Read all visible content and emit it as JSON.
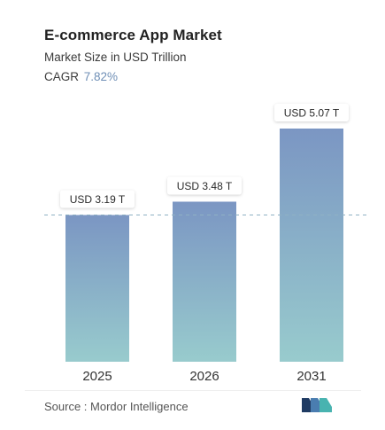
{
  "header": {
    "title": "E-commerce App Market",
    "subtitle": "Market Size in USD Trillion",
    "cagr_label": "CAGR",
    "cagr_value": "7.82%"
  },
  "footer": {
    "source": "Source :  Mordor Intelligence",
    "logo_icon": "mordor-intelligence-logo-icon"
  },
  "colors": {
    "bar_top": "#7b96c3",
    "bar_bottom": "#98cbcd",
    "accent": "#6f8fb6",
    "reference_line": "#8fb0c4"
  },
  "chart_data": {
    "type": "bar",
    "title": "E-commerce App Market",
    "subtitle": "Market Size in USD Trillion",
    "categories": [
      "2025",
      "2026",
      "2031"
    ],
    "values": [
      3.19,
      3.48,
      5.07
    ],
    "data_labels": [
      "USD 3.19 T",
      "USD 3.48 T",
      "USD 5.07 T"
    ],
    "reference_line": 3.19,
    "xlabel": "",
    "ylabel": "",
    "ylim": [
      0,
      5.07
    ],
    "grid": false,
    "legend": "none"
  }
}
